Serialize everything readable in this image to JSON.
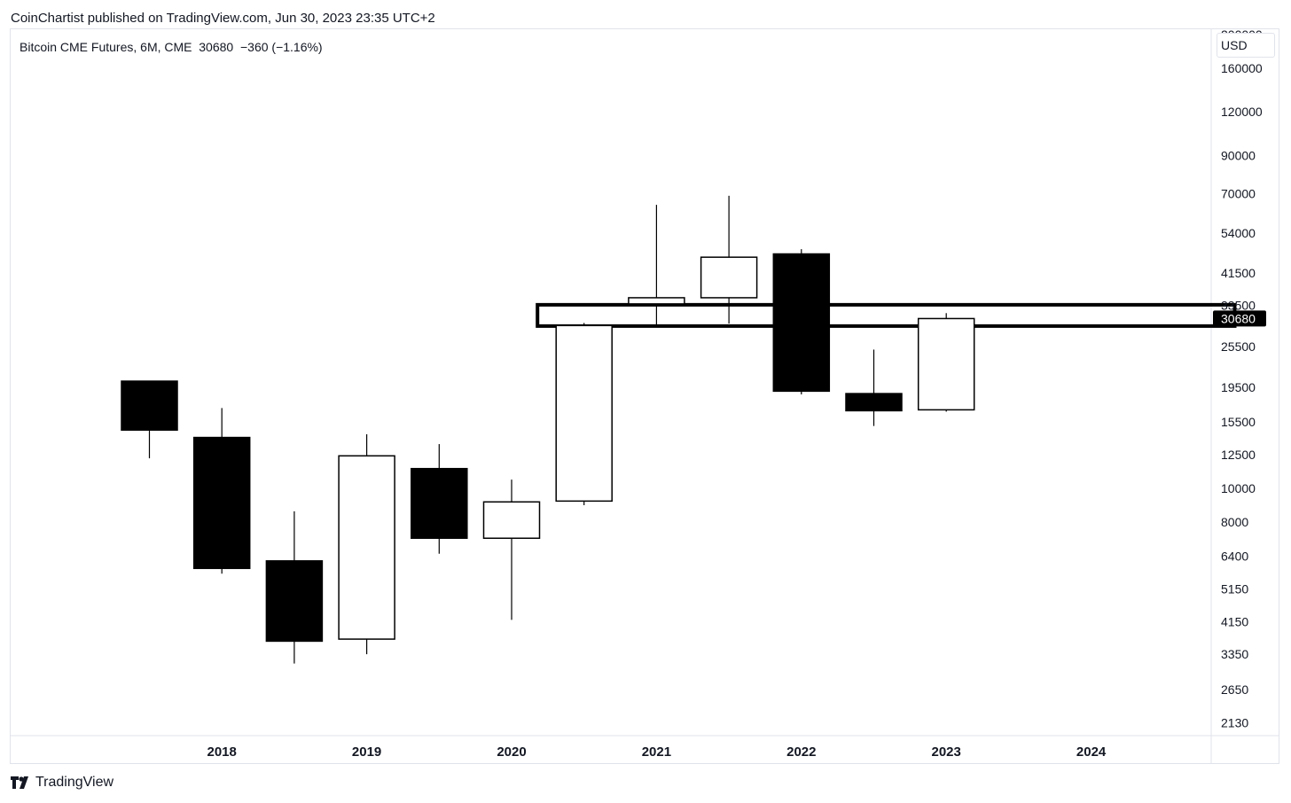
{
  "header": {
    "published": "CoinChartist published on TradingView.com, Jun 30, 2023 23:35 UTC+2"
  },
  "legend": {
    "text": "Bitcoin CME Futures, 6M, CME  30680  −360 (−1.16%)"
  },
  "price_axis": {
    "unit": "USD",
    "last_price_label": "30680"
  },
  "footer": {
    "brand": "TradingView",
    "logo_icon": "tradingview-logo-icon"
  },
  "colors": {
    "bearish": "#000000",
    "bullish": "#ffffff",
    "outline": "#000000",
    "grid_border": "#e0e3eb",
    "badge": "#000000"
  },
  "chart_data": {
    "type": "candlestick",
    "title": "Bitcoin CME Futures, 6M, CME",
    "scale": "log",
    "ylim": [
      2000,
      200000
    ],
    "y_ticks": [
      2130,
      2650,
      3350,
      4150,
      5150,
      6400,
      8000,
      10000,
      12500,
      15500,
      19500,
      25500,
      33500,
      41500,
      54000,
      70000,
      90000,
      120000,
      160000,
      200000
    ],
    "x_tick_labels": [
      "2018",
      "2019",
      "2020",
      "2021",
      "2022",
      "2023",
      "2024"
    ],
    "last_price": 30680,
    "candles": [
      {
        "period": "2017 H2",
        "open": 20300,
        "high": 20300,
        "low": 12200,
        "close": 14700
      },
      {
        "period": "2018 H1",
        "open": 14000,
        "high": 17000,
        "low": 5700,
        "close": 5900
      },
      {
        "period": "2018 H2",
        "open": 6200,
        "high": 8600,
        "low": 3150,
        "close": 3650
      },
      {
        "period": "2019 H1",
        "open": 3700,
        "high": 14300,
        "low": 3350,
        "close": 12400
      },
      {
        "period": "2019 H2",
        "open": 11400,
        "high": 13400,
        "low": 6500,
        "close": 7200
      },
      {
        "period": "2020 H1",
        "open": 7200,
        "high": 10600,
        "low": 4200,
        "close": 9150
      },
      {
        "period": "2020 H2",
        "open": 9200,
        "high": 29800,
        "low": 8950,
        "close": 29300
      },
      {
        "period": "2021 H1",
        "open": 33800,
        "high": 65000,
        "low": 29000,
        "close": 35200
      },
      {
        "period": "2021 H2",
        "open": 35200,
        "high": 69000,
        "low": 29700,
        "close": 46000
      },
      {
        "period": "2022 H1",
        "open": 47000,
        "high": 48500,
        "low": 18600,
        "close": 19000
      },
      {
        "period": "2022 H2",
        "open": 18700,
        "high": 25000,
        "low": 15100,
        "close": 16700
      },
      {
        "period": "2023 H1",
        "open": 16800,
        "high": 31800,
        "low": 16600,
        "close": 30680
      }
    ],
    "zone": {
      "low": 29200,
      "high": 33600,
      "from": "2020 H2",
      "to": "2023 H2"
    }
  }
}
